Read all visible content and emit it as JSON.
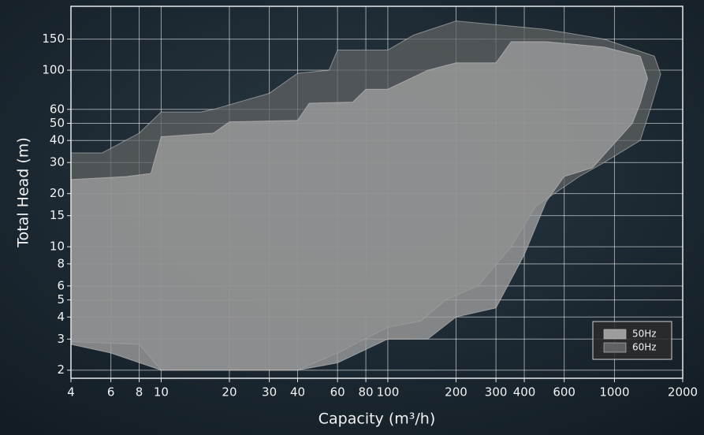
{
  "chart_data": {
    "type": "area",
    "x_label": "Capacity (m³/h)",
    "y_label": "Total Head (m)",
    "xscale": "log",
    "yscale": "log",
    "xlim": [
      4,
      2000
    ],
    "ylim": [
      1.8,
      230
    ],
    "xticks": [
      4,
      6,
      8,
      10,
      20,
      30,
      40,
      60,
      80,
      100,
      200,
      300,
      400,
      600,
      1000,
      2000
    ],
    "yticks": [
      2,
      3,
      4,
      5,
      6,
      8,
      10,
      15,
      20,
      30,
      40,
      50,
      60,
      100,
      150
    ],
    "grid": true,
    "legend": "lower right",
    "series": [
      {
        "name": "60Hz",
        "color": "#5f6163",
        "x": [
          4,
          5.5,
          8,
          10,
          15,
          17,
          30,
          40,
          55,
          60,
          100,
          130,
          200,
          500,
          900,
          1500,
          1600,
          1450,
          1300,
          900,
          700,
          450,
          350,
          250,
          180,
          140,
          100,
          60,
          40,
          20,
          10,
          8,
          4
        ],
        "values": [
          34,
          34,
          44,
          58,
          58,
          60,
          74,
          96,
          100,
          130,
          130,
          158,
          190,
          170,
          150,
          120,
          95,
          62,
          40,
          30,
          25,
          17,
          10,
          6,
          5,
          3.8,
          3.5,
          2.5,
          2,
          2,
          2,
          2.8,
          2.9
        ]
      },
      {
        "name": "50Hz",
        "color": "#9c9c9c",
        "x": [
          4,
          7,
          9,
          10,
          17,
          20,
          40,
          45,
          70,
          80,
          100,
          150,
          200,
          300,
          350,
          500,
          900,
          1300,
          1400,
          1300,
          1200,
          800,
          600,
          500,
          400,
          300,
          200,
          150,
          100,
          60,
          40,
          20,
          10,
          6,
          4
        ],
        "values": [
          24,
          25,
          26,
          42,
          44,
          51,
          52,
          65,
          66,
          78,
          78,
          100,
          110,
          110,
          145,
          145,
          135,
          120,
          90,
          65,
          50,
          28,
          25,
          18,
          9,
          4.5,
          4,
          3,
          3,
          2.2,
          2,
          2,
          2,
          2.5,
          2.8
        ]
      }
    ]
  }
}
